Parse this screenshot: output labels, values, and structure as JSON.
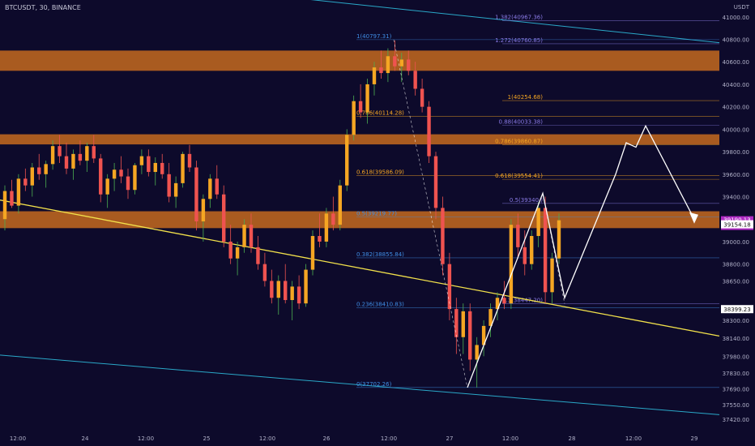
{
  "header": {
    "ticker": "BTCUSDT, 30, BINANCE"
  },
  "colors": {
    "background": "#0d0a2b",
    "bull": "#f5a623",
    "bear": "#ef5350",
    "wick_bull": "#4caf50",
    "wick_bear": "#ef5350",
    "zone": "#c56a1e",
    "trendline": "#f2e14b",
    "channel": "#2aa8c8",
    "fib_blue": "#3f8ee6",
    "fib_purple": "#8a7be6",
    "fib_orange": "#f5a623",
    "projection": "#ffffff",
    "axis_text": "#b0b0c8",
    "last_price_bg": "#b02ac4"
  },
  "chart_data": {
    "type": "candlestick",
    "price_axis": {
      "unit": "USDT",
      "range": [
        37340,
        41150
      ],
      "tick_labels": [
        "41000.00",
        "40800.00",
        "40600.00",
        "40400.00",
        "40200.00",
        "40000.00",
        "39800.00",
        "39600.00",
        "39400.00",
        "39000.00",
        "38800.00",
        "38650.00",
        "38300.00",
        "38140.00",
        "37980.00",
        "37830.00",
        "37690.00",
        "37550.00",
        "37420.00"
      ]
    },
    "time_axis": {
      "labels": [
        "12:00",
        "24",
        "12:00",
        "25",
        "12:00",
        "26",
        "12:00",
        "27",
        "12:00",
        "28",
        "12:00",
        "29"
      ]
    },
    "price_readouts": [
      {
        "label": "39190.13",
        "sub": "09:47",
        "value": 39190.13,
        "style": "last"
      },
      {
        "label": "39154.18",
        "value": 39154.18,
        "style": "box"
      },
      {
        "label": "38399.23",
        "value": 38399.23,
        "style": "box"
      }
    ],
    "zones": [
      {
        "from": 40520,
        "to": 40700
      },
      {
        "from": 39865,
        "to": 39955
      },
      {
        "from": 39120,
        "to": 39270
      }
    ],
    "fib_left": [
      {
        "label": "1(40797.31)",
        "value": 40797.31,
        "color": "fib_blue"
      },
      {
        "label": "0.786(40114.28)",
        "value": 40114.28,
        "color": "fib_orange"
      },
      {
        "label": "0.618(39586.09)",
        "value": 39586.09,
        "color": "fib_orange"
      },
      {
        "label": "0.5(39219.77)",
        "value": 39219.77,
        "color": "fib_blue"
      },
      {
        "label": "0.382(38855.84)",
        "value": 38855.84,
        "color": "fib_blue"
      },
      {
        "label": "0.236(38410.83)",
        "value": 38410.83,
        "color": "fib_blue"
      },
      {
        "label": "0(37702.26)",
        "value": 37702.26,
        "color": "fib_blue"
      }
    ],
    "fib_right": [
      {
        "label": "1.382(40967.36)",
        "value": 40967.36,
        "color": "fib_purple"
      },
      {
        "label": "1.272(40760.85)",
        "value": 40760.85,
        "color": "fib_purple"
      },
      {
        "label": "1(40254.68)",
        "value": 40254.68,
        "color": "fib_orange"
      },
      {
        "label": "0.88(40033.38)",
        "value": 40033.38,
        "color": "fib_purple"
      },
      {
        "label": "0.786(39860.87)",
        "value": 39860.87,
        "color": "fib_orange"
      },
      {
        "label": "0.618(39554.41)",
        "value": 39554.41,
        "color": "fib_orange"
      },
      {
        "label": "0.5(39340.)",
        "value": 39340,
        "color": "fib_purple"
      },
      {
        "label": "0.3(38447.20)",
        "value": 38447.2,
        "color": "fib_purple"
      }
    ],
    "candles_ohlc": [
      [
        39200,
        39500,
        39100,
        39450
      ],
      [
        39450,
        39550,
        39300,
        39320
      ],
      [
        39320,
        39600,
        39250,
        39560
      ],
      [
        39560,
        39650,
        39450,
        39500
      ],
      [
        39500,
        39700,
        39400,
        39660
      ],
      [
        39660,
        39780,
        39550,
        39600
      ],
      [
        39600,
        39720,
        39480,
        39690
      ],
      [
        39690,
        39900,
        39640,
        39850
      ],
      [
        39850,
        39950,
        39700,
        39760
      ],
      [
        39760,
        39880,
        39600,
        39650
      ],
      [
        39650,
        39820,
        39550,
        39780
      ],
      [
        39780,
        39900,
        39680,
        39720
      ],
      [
        39720,
        39880,
        39620,
        39850
      ],
      [
        39850,
        39950,
        39700,
        39740
      ],
      [
        39740,
        39780,
        39350,
        39420
      ],
      [
        39420,
        39600,
        39300,
        39560
      ],
      [
        39560,
        39700,
        39450,
        39640
      ],
      [
        39640,
        39760,
        39520,
        39580
      ],
      [
        39580,
        39650,
        39380,
        39460
      ],
      [
        39460,
        39700,
        39420,
        39680
      ],
      [
        39680,
        39820,
        39600,
        39760
      ],
      [
        39760,
        39820,
        39580,
        39620
      ],
      [
        39620,
        39750,
        39500,
        39700
      ],
      [
        39700,
        39780,
        39560,
        39600
      ],
      [
        39600,
        39700,
        39350,
        39400
      ],
      [
        39400,
        39580,
        39300,
        39520
      ],
      [
        39520,
        39800,
        39480,
        39780
      ],
      [
        39780,
        39860,
        39620,
        39660
      ],
      [
        39660,
        39720,
        39100,
        39180
      ],
      [
        39180,
        39420,
        39000,
        39380
      ],
      [
        39380,
        39600,
        39300,
        39560
      ],
      [
        39560,
        39680,
        39380,
        39420
      ],
      [
        39420,
        39500,
        38950,
        39000
      ],
      [
        39000,
        39150,
        38800,
        38850
      ],
      [
        38850,
        39000,
        38700,
        38950
      ],
      [
        38950,
        39200,
        38900,
        39150
      ],
      [
        39150,
        39250,
        38900,
        38950
      ],
      [
        38950,
        39050,
        38750,
        38800
      ],
      [
        38800,
        38900,
        38600,
        38650
      ],
      [
        38650,
        38750,
        38450,
        38500
      ],
      [
        38500,
        38700,
        38350,
        38650
      ],
      [
        38650,
        38800,
        38450,
        38480
      ],
      [
        38480,
        38650,
        38300,
        38600
      ],
      [
        38600,
        38700,
        38400,
        38450
      ],
      [
        38450,
        38800,
        38420,
        38750
      ],
      [
        38750,
        39100,
        38700,
        39050
      ],
      [
        39050,
        39250,
        38950,
        39000
      ],
      [
        39000,
        39300,
        38950,
        39250
      ],
      [
        39250,
        39400,
        39100,
        39150
      ],
      [
        39150,
        39550,
        39100,
        39500
      ],
      [
        39500,
        40000,
        39450,
        39950
      ],
      [
        39950,
        40300,
        39900,
        40250
      ],
      [
        40250,
        40400,
        40100,
        40150
      ],
      [
        40150,
        40450,
        40050,
        40400
      ],
      [
        40400,
        40600,
        40300,
        40550
      ],
      [
        40550,
        40700,
        40450,
        40500
      ],
      [
        40500,
        40720,
        40420,
        40650
      ],
      [
        40650,
        40790,
        40520,
        40560
      ],
      [
        40560,
        40680,
        40420,
        40620
      ],
      [
        40620,
        40700,
        40480,
        40520
      ],
      [
        40520,
        40600,
        40300,
        40360
      ],
      [
        40360,
        40450,
        40150,
        40200
      ],
      [
        40200,
        40250,
        39700,
        39760
      ],
      [
        39760,
        39800,
        39200,
        39300
      ],
      [
        39300,
        39400,
        38700,
        38800
      ],
      [
        38800,
        38900,
        38300,
        38400
      ],
      [
        38400,
        38500,
        38000,
        38150
      ],
      [
        38150,
        38450,
        38000,
        38380
      ],
      [
        38380,
        38450,
        37850,
        37950
      ],
      [
        37950,
        38150,
        37702,
        38080
      ],
      [
        38080,
        38300,
        37980,
        38250
      ],
      [
        38250,
        38450,
        38150,
        38400
      ],
      [
        38400,
        38550,
        38300,
        38500
      ],
      [
        38500,
        38650,
        38400,
        38450
      ],
      [
        38450,
        39200,
        38400,
        39150
      ],
      [
        39150,
        39250,
        38850,
        38950
      ],
      [
        38950,
        39100,
        38700,
        38800
      ],
      [
        38800,
        39100,
        38750,
        39050
      ],
      [
        39050,
        39350,
        38950,
        39300
      ],
      [
        39300,
        39400,
        38450,
        38550
      ],
      [
        38550,
        38900,
        38450,
        38850
      ],
      [
        38850,
        39250,
        38800,
        39190
      ]
    ],
    "trendline": [
      [
        0,
        39370
      ],
      [
        1,
        38160
      ]
    ],
    "channel_upper": [
      [
        0.4,
        41160
      ],
      [
        1,
        40770
      ]
    ],
    "channel_lower": [
      [
        0,
        37990
      ],
      [
        1,
        37460
      ]
    ],
    "projection_path": [
      [
        37702,
        0
      ],
      [
        39430,
        0
      ],
      [
        38500,
        0
      ],
      [
        39600,
        0
      ],
      [
        39880,
        0
      ],
      [
        39840,
        0
      ],
      [
        40030,
        0
      ],
      [
        39200,
        0
      ]
    ]
  }
}
